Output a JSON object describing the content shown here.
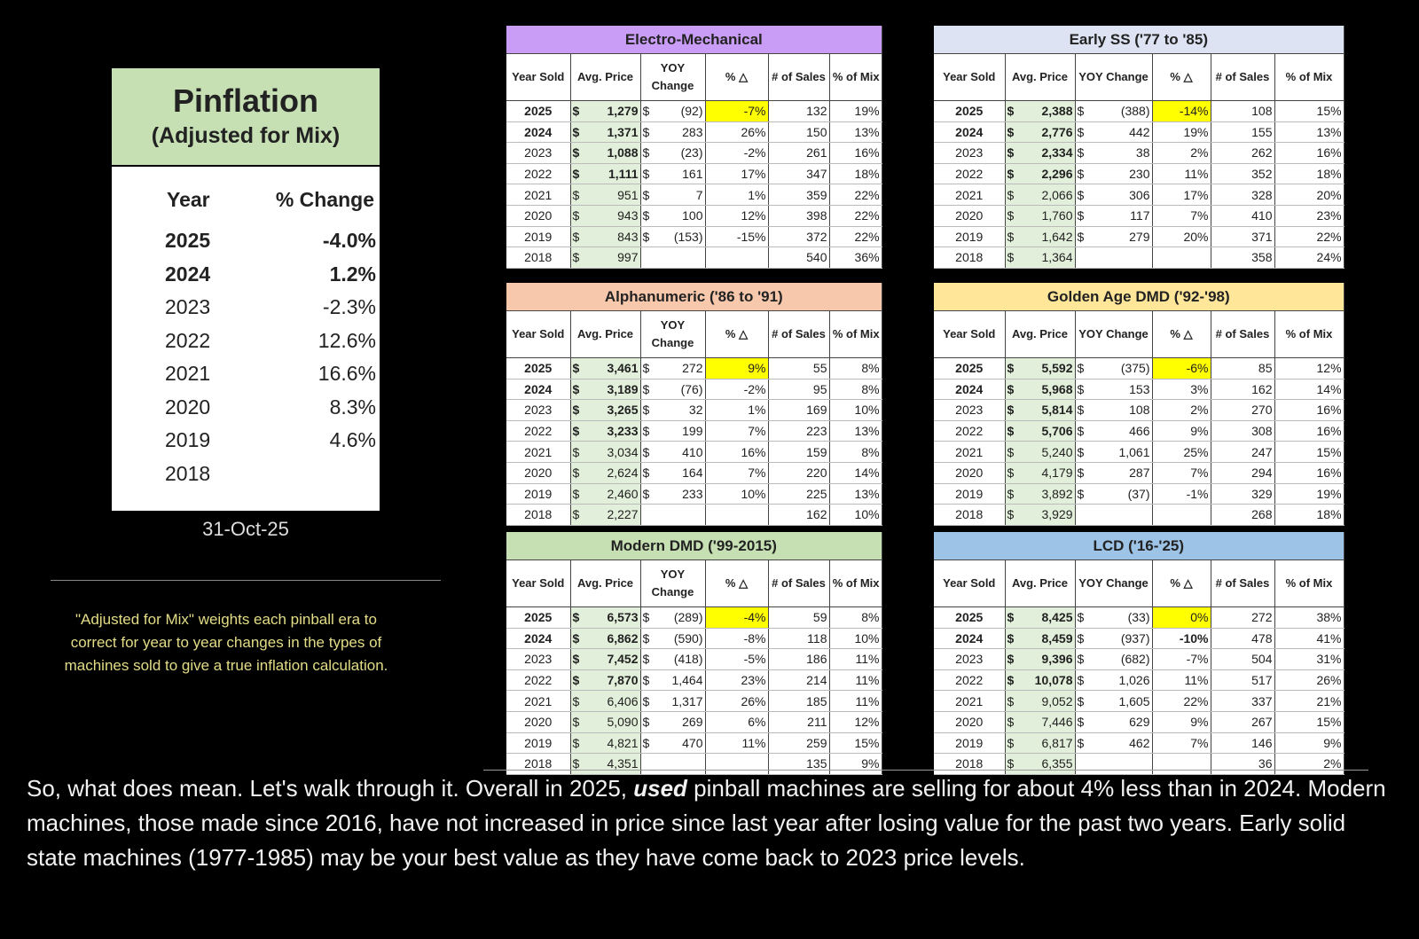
{
  "left_panel": {
    "title": "Pinflation",
    "subtitle": "(Adjusted for Mix)",
    "col_year": "Year",
    "col_change": "% Change",
    "rows": [
      {
        "year": "2025",
        "change": "-4.0%"
      },
      {
        "year": "2024",
        "change": "1.2%"
      },
      {
        "year": "2023",
        "change": "-2.3%"
      },
      {
        "year": "2022",
        "change": "12.6%"
      },
      {
        "year": "2021",
        "change": "16.6%"
      },
      {
        "year": "2020",
        "change": "8.3%"
      },
      {
        "year": "2019",
        "change": "4.6%"
      },
      {
        "year": "2018",
        "change": ""
      }
    ],
    "date": "31-Oct-25"
  },
  "note": "\"Adjusted for Mix\" weights each pinball era to correct for year to year changes in the types of machines sold to give a true inflation calculation.",
  "tables": [
    {
      "title": "Electro-Mechanical",
      "color": "#c99cf5",
      "headers": [
        "Year Sold",
        "Avg. Price",
        "YOY Change",
        "% △",
        "# of Sales",
        "% of Mix"
      ],
      "rows": [
        [
          "2025",
          "1,279",
          "(92)",
          "-7%",
          "132",
          "19%"
        ],
        [
          "2024",
          "1,371",
          "283",
          "26%",
          "150",
          "13%"
        ],
        [
          "2023",
          "1,088",
          "(23)",
          "-2%",
          "261",
          "16%"
        ],
        [
          "2022",
          "1,111",
          "161",
          "17%",
          "347",
          "18%"
        ],
        [
          "2021",
          "951",
          "7",
          "1%",
          "359",
          "22%"
        ],
        [
          "2020",
          "943",
          "100",
          "12%",
          "398",
          "22%"
        ],
        [
          "2019",
          "843",
          "(153)",
          "-15%",
          "372",
          "22%"
        ],
        [
          "2018",
          "997",
          "",
          "",
          "540",
          "36%"
        ]
      ]
    },
    {
      "title": "Early SS ('77 to '85)",
      "color": "#dde3f2",
      "headers": [
        "Year Sold",
        "Avg. Price",
        "YOY Change",
        "% △",
        "# of Sales",
        "% of Mix"
      ],
      "rows": [
        [
          "2025",
          "2,388",
          "(388)",
          "-14%",
          "108",
          "15%"
        ],
        [
          "2024",
          "2,776",
          "442",
          "19%",
          "155",
          "13%"
        ],
        [
          "2023",
          "2,334",
          "38",
          "2%",
          "262",
          "16%"
        ],
        [
          "2022",
          "2,296",
          "230",
          "11%",
          "352",
          "18%"
        ],
        [
          "2021",
          "2,066",
          "306",
          "17%",
          "328",
          "20%"
        ],
        [
          "2020",
          "1,760",
          "117",
          "7%",
          "410",
          "23%"
        ],
        [
          "2019",
          "1,642",
          "279",
          "20%",
          "371",
          "22%"
        ],
        [
          "2018",
          "1,364",
          "",
          "",
          "358",
          "24%"
        ]
      ]
    },
    {
      "title": "Alphanumeric ('86 to '91)",
      "color": "#f8c8ad",
      "headers": [
        "Year Sold",
        "Avg. Price",
        "YOY Change",
        "% △",
        "# of Sales",
        "% of Mix"
      ],
      "rows": [
        [
          "2025",
          "3,461",
          "272",
          "9%",
          "55",
          "8%"
        ],
        [
          "2024",
          "3,189",
          "(76)",
          "-2%",
          "95",
          "8%"
        ],
        [
          "2023",
          "3,265",
          "32",
          "1%",
          "169",
          "10%"
        ],
        [
          "2022",
          "3,233",
          "199",
          "7%",
          "223",
          "13%"
        ],
        [
          "2021",
          "3,034",
          "410",
          "16%",
          "159",
          "8%"
        ],
        [
          "2020",
          "2,624",
          "164",
          "7%",
          "220",
          "14%"
        ],
        [
          "2019",
          "2,460",
          "233",
          "10%",
          "225",
          "13%"
        ],
        [
          "2018",
          "2,227",
          "",
          "",
          "162",
          "10%"
        ]
      ]
    },
    {
      "title": "Golden Age DMD ('92-'98)",
      "color": "#ffe699",
      "headers": [
        "Year Sold",
        "Avg. Price",
        "YOY Change",
        "% △",
        "# of Sales",
        "% of Mix"
      ],
      "rows": [
        [
          "2025",
          "5,592",
          "(375)",
          "-6%",
          "85",
          "12%"
        ],
        [
          "2024",
          "5,968",
          "153",
          "3%",
          "162",
          "14%"
        ],
        [
          "2023",
          "5,814",
          "108",
          "2%",
          "270",
          "16%"
        ],
        [
          "2022",
          "5,706",
          "466",
          "9%",
          "308",
          "16%"
        ],
        [
          "2021",
          "5,240",
          "1,061",
          "25%",
          "247",
          "15%"
        ],
        [
          "2020",
          "4,179",
          "287",
          "7%",
          "294",
          "16%"
        ],
        [
          "2019",
          "3,892",
          "(37)",
          "-1%",
          "329",
          "19%"
        ],
        [
          "2018",
          "3,929",
          "",
          "",
          "268",
          "18%"
        ]
      ]
    },
    {
      "title": "Modern DMD ('99-2015)",
      "color": "#c6e0b4",
      "headers": [
        "Year Sold",
        "Avg. Price",
        "YOY Change",
        "% △",
        "# of Sales",
        "% of Mix"
      ],
      "rows": [
        [
          "2025",
          "6,573",
          "(289)",
          "-4%",
          "59",
          "8%"
        ],
        [
          "2024",
          "6,862",
          "(590)",
          "-8%",
          "118",
          "10%"
        ],
        [
          "2023",
          "7,452",
          "(418)",
          "-5%",
          "186",
          "11%"
        ],
        [
          "2022",
          "7,870",
          "1,464",
          "23%",
          "214",
          "11%"
        ],
        [
          "2021",
          "6,406",
          "1,317",
          "26%",
          "185",
          "11%"
        ],
        [
          "2020",
          "5,090",
          "269",
          "6%",
          "211",
          "12%"
        ],
        [
          "2019",
          "4,821",
          "470",
          "11%",
          "259",
          "15%"
        ],
        [
          "2018",
          "4,351",
          "",
          "",
          "135",
          "9%"
        ]
      ]
    },
    {
      "title": "LCD ('16-'25)",
      "color": "#9dc3e6",
      "headers": [
        "Year Sold",
        "Avg. Price",
        "YOY Change",
        "% △",
        "# of Sales",
        "% of Mix"
      ],
      "rows": [
        [
          "2025",
          "8,425",
          "(33)",
          "0%",
          "272",
          "38%"
        ],
        [
          "2024",
          "8,459",
          "(937)",
          "-10%",
          "478",
          "41%"
        ],
        [
          "2023",
          "9,396",
          "(682)",
          "-7%",
          "504",
          "31%"
        ],
        [
          "2022",
          "10,078",
          "1,026",
          "11%",
          "517",
          "26%"
        ],
        [
          "2021",
          "9,052",
          "1,605",
          "22%",
          "337",
          "21%"
        ],
        [
          "2020",
          "7,446",
          "629",
          "9%",
          "267",
          "15%"
        ],
        [
          "2019",
          "6,817",
          "462",
          "7%",
          "146",
          "9%"
        ],
        [
          "2018",
          "6,355",
          "",
          "",
          "36",
          "2%"
        ]
      ]
    }
  ],
  "currency": "$",
  "highlight_color": "#ffff00",
  "paragraph": {
    "before": "So, what does mean. Let's walk through it. Overall in 2025, ",
    "emph": "used",
    "after": " pinball machines are selling for about 4% less than in 2024. Modern  machines, those made since 2016, have not increased in price since last year after losing value for the past two years. Early solid state machines (1977-1985) may be your best value as they have come back to 2023 price levels."
  }
}
